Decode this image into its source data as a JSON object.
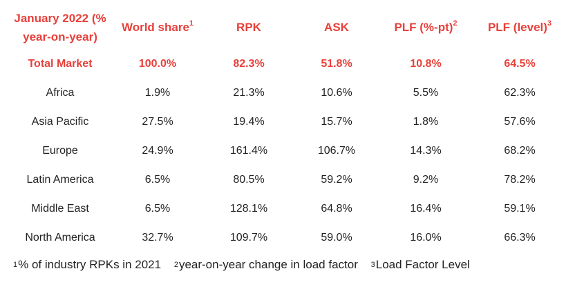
{
  "table": {
    "headers": [
      {
        "label": "January 2022 (% year-on-year)",
        "note": ""
      },
      {
        "label": "World share",
        "note": "1"
      },
      {
        "label": "RPK",
        "note": ""
      },
      {
        "label": "ASK",
        "note": ""
      },
      {
        "label": "PLF (%-pt)",
        "note": "2"
      },
      {
        "label": "PLF (level)",
        "note": "3"
      }
    ],
    "rows": [
      {
        "region": "Total Market",
        "values": [
          "100.0%",
          "82.3%",
          "51.8%",
          "10.8%",
          "64.5%"
        ]
      },
      {
        "region": "Africa",
        "values": [
          "1.9%",
          "21.3%",
          "10.6%",
          "5.5%",
          "62.3%"
        ]
      },
      {
        "region": "Asia Pacific",
        "values": [
          "27.5%",
          "19.4%",
          "15.7%",
          "1.8%",
          "57.6%"
        ]
      },
      {
        "region": "Europe",
        "values": [
          "24.9%",
          "161.4%",
          "106.7%",
          "14.3%",
          "68.2%"
        ]
      },
      {
        "region": "Latin America",
        "values": [
          "6.5%",
          "80.5%",
          "59.2%",
          "9.2%",
          "78.2%"
        ]
      },
      {
        "region": "Middle East",
        "values": [
          "6.5%",
          "128.1%",
          "64.8%",
          "16.4%",
          "59.1%"
        ]
      },
      {
        "region": "North America",
        "values": [
          "32.7%",
          "109.7%",
          "59.0%",
          "16.0%",
          "66.3%"
        ]
      }
    ]
  },
  "footnotes": [
    {
      "mark": "1",
      "text": "% of industry RPKs in 2021"
    },
    {
      "mark": "2",
      "text": "year-on-year change in load factor"
    },
    {
      "mark": "3",
      "text": "Load Factor Level"
    }
  ],
  "colors": {
    "accent": "#e8403a",
    "text": "#222222",
    "background": "#ffffff"
  }
}
